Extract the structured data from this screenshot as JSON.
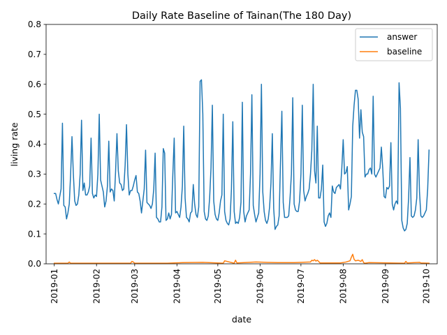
{
  "chart_data": {
    "type": "line",
    "title": "Daily Rate Baseline of Tainan(The 180 Day)",
    "xlabel": "date",
    "ylabel": "living rate",
    "xlim": [
      "2018-12-26",
      "2019-10-09"
    ],
    "ylim": [
      0.0,
      0.8
    ],
    "yticks": [
      0.0,
      0.1,
      0.2,
      0.3,
      0.4,
      0.5,
      0.6,
      0.7,
      0.8
    ],
    "ytick_labels": [
      "0.0",
      "0.1",
      "0.2",
      "0.3",
      "0.4",
      "0.5",
      "0.6",
      "0.7",
      "0.8"
    ],
    "xticks": [
      "2019-01-01",
      "2019-02-01",
      "2019-03-01",
      "2019-04-01",
      "2019-05-01",
      "2019-06-01",
      "2019-07-01",
      "2019-08-01",
      "2019-09-01",
      "2019-10-01"
    ],
    "xtick_labels": [
      "2019-01",
      "2019-02",
      "2019-03",
      "2019-04",
      "2019-05",
      "2019-06",
      "2019-07",
      "2019-08",
      "2019-09",
      "2019-10"
    ],
    "grid": false,
    "legend_position": "top-right",
    "series": [
      {
        "name": "answer",
        "color": "#1f77b4",
        "x": [
          "2019-01-01",
          "2019-01-02",
          "2019-01-03",
          "2019-01-04",
          "2019-01-05",
          "2019-01-06",
          "2019-01-07",
          "2019-01-08",
          "2019-01-09",
          "2019-01-10",
          "2019-01-11",
          "2019-01-12",
          "2019-01-13",
          "2019-01-14",
          "2019-01-15",
          "2019-01-16",
          "2019-01-17",
          "2019-01-18",
          "2019-01-19",
          "2019-01-20",
          "2019-01-21",
          "2019-01-22",
          "2019-01-23",
          "2019-01-24",
          "2019-01-25",
          "2019-01-26",
          "2019-01-27",
          "2019-01-28",
          "2019-01-29",
          "2019-01-30",
          "2019-01-31",
          "2019-02-01",
          "2019-02-02",
          "2019-02-03",
          "2019-02-04",
          "2019-02-05",
          "2019-02-06",
          "2019-02-07",
          "2019-02-08",
          "2019-02-09",
          "2019-02-10",
          "2019-02-11",
          "2019-02-12",
          "2019-02-13",
          "2019-02-14",
          "2019-02-15",
          "2019-02-16",
          "2019-02-17",
          "2019-02-18",
          "2019-02-19",
          "2019-02-20",
          "2019-02-21",
          "2019-02-22",
          "2019-02-23",
          "2019-02-24",
          "2019-02-25",
          "2019-02-26",
          "2019-02-27",
          "2019-02-28",
          "2019-03-01",
          "2019-03-02",
          "2019-03-03",
          "2019-03-04",
          "2019-03-05",
          "2019-03-06",
          "2019-03-07",
          "2019-03-08",
          "2019-03-09",
          "2019-03-10",
          "2019-03-11",
          "2019-03-12",
          "2019-03-13",
          "2019-03-14",
          "2019-03-15",
          "2019-03-16",
          "2019-03-17",
          "2019-03-18",
          "2019-03-19",
          "2019-03-20",
          "2019-03-21",
          "2019-03-22",
          "2019-03-23",
          "2019-03-24",
          "2019-03-25",
          "2019-03-26",
          "2019-03-27",
          "2019-03-28",
          "2019-03-29",
          "2019-03-30",
          "2019-03-31",
          "2019-04-01",
          "2019-04-02",
          "2019-04-03",
          "2019-04-04",
          "2019-04-05",
          "2019-04-06",
          "2019-04-07",
          "2019-04-08",
          "2019-04-09",
          "2019-04-10",
          "2019-04-11",
          "2019-04-12",
          "2019-04-13",
          "2019-04-14",
          "2019-04-15",
          "2019-04-16",
          "2019-04-17",
          "2019-04-18",
          "2019-04-19",
          "2019-04-20",
          "2019-04-21",
          "2019-04-22",
          "2019-04-23",
          "2019-04-24",
          "2019-04-25",
          "2019-04-26",
          "2019-04-27",
          "2019-04-28",
          "2019-04-29",
          "2019-04-30",
          "2019-05-01",
          "2019-05-02",
          "2019-05-03",
          "2019-05-04",
          "2019-05-05",
          "2019-05-06",
          "2019-05-07",
          "2019-05-08",
          "2019-05-09",
          "2019-05-10",
          "2019-05-11",
          "2019-05-12",
          "2019-05-13",
          "2019-05-14",
          "2019-05-15",
          "2019-05-16",
          "2019-05-17",
          "2019-05-18",
          "2019-05-19",
          "2019-05-20",
          "2019-05-21",
          "2019-05-22",
          "2019-05-23",
          "2019-05-24",
          "2019-05-25",
          "2019-05-26",
          "2019-05-27",
          "2019-05-28",
          "2019-05-29",
          "2019-05-30",
          "2019-05-31",
          "2019-06-01",
          "2019-06-02",
          "2019-06-03",
          "2019-06-04",
          "2019-06-05",
          "2019-06-06",
          "2019-06-07",
          "2019-06-08",
          "2019-06-09",
          "2019-06-10",
          "2019-06-11",
          "2019-06-12",
          "2019-06-13",
          "2019-06-14",
          "2019-06-15",
          "2019-06-16",
          "2019-06-17",
          "2019-06-18",
          "2019-06-19",
          "2019-06-20",
          "2019-06-21",
          "2019-06-22",
          "2019-06-23",
          "2019-06-24",
          "2019-06-25",
          "2019-06-26",
          "2019-06-27",
          "2019-06-28",
          "2019-06-29",
          "2019-06-30",
          "2019-07-01",
          "2019-07-02",
          "2019-07-03",
          "2019-07-04",
          "2019-07-05",
          "2019-07-06",
          "2019-07-07",
          "2019-07-08",
          "2019-07-09",
          "2019-07-10",
          "2019-07-11",
          "2019-07-12",
          "2019-07-13",
          "2019-07-14",
          "2019-07-15",
          "2019-07-16",
          "2019-07-17",
          "2019-07-18",
          "2019-07-19",
          "2019-07-20",
          "2019-07-21",
          "2019-07-22",
          "2019-07-23",
          "2019-07-24",
          "2019-07-25",
          "2019-07-26",
          "2019-07-27",
          "2019-07-28",
          "2019-07-29",
          "2019-07-30",
          "2019-07-31",
          "2019-08-01",
          "2019-08-02",
          "2019-08-03",
          "2019-08-04",
          "2019-08-05",
          "2019-08-06",
          "2019-08-07",
          "2019-08-08",
          "2019-08-09",
          "2019-08-10",
          "2019-08-11",
          "2019-08-12",
          "2019-08-13",
          "2019-08-14",
          "2019-08-15",
          "2019-08-16",
          "2019-08-17",
          "2019-08-18",
          "2019-08-19",
          "2019-08-20",
          "2019-08-21",
          "2019-08-22",
          "2019-08-23",
          "2019-08-24",
          "2019-08-25",
          "2019-08-26",
          "2019-08-27",
          "2019-08-28",
          "2019-08-29",
          "2019-08-30",
          "2019-08-31",
          "2019-09-01",
          "2019-09-02",
          "2019-09-03",
          "2019-09-04",
          "2019-09-05",
          "2019-09-06",
          "2019-09-07",
          "2019-09-08",
          "2019-09-09",
          "2019-09-10",
          "2019-09-11",
          "2019-09-12",
          "2019-09-13",
          "2019-09-14",
          "2019-09-15",
          "2019-09-16",
          "2019-09-17",
          "2019-09-18",
          "2019-09-19",
          "2019-09-20",
          "2019-09-21",
          "2019-09-22",
          "2019-09-23",
          "2019-09-24",
          "2019-09-25",
          "2019-09-26",
          "2019-09-27",
          "2019-09-28",
          "2019-09-29",
          "2019-09-30",
          "2019-10-01",
          "2019-10-02",
          "2019-10-03"
        ],
        "y": [
          0.235,
          0.235,
          0.215,
          0.2,
          0.225,
          0.25,
          0.47,
          0.195,
          0.19,
          0.15,
          0.17,
          0.2,
          0.3,
          0.425,
          0.3,
          0.21,
          0.195,
          0.2,
          0.23,
          0.3,
          0.48,
          0.245,
          0.27,
          0.23,
          0.23,
          0.24,
          0.26,
          0.42,
          0.235,
          0.22,
          0.23,
          0.225,
          0.3,
          0.5,
          0.28,
          0.26,
          0.24,
          0.19,
          0.21,
          0.26,
          0.41,
          0.24,
          0.25,
          0.245,
          0.21,
          0.31,
          0.435,
          0.31,
          0.27,
          0.265,
          0.245,
          0.25,
          0.33,
          0.465,
          0.3,
          0.23,
          0.245,
          0.245,
          0.26,
          0.28,
          0.295,
          0.24,
          0.235,
          0.21,
          0.17,
          0.21,
          0.25,
          0.38,
          0.205,
          0.2,
          0.195,
          0.185,
          0.2,
          0.25,
          0.37,
          0.155,
          0.15,
          0.14,
          0.14,
          0.19,
          0.385,
          0.37,
          0.145,
          0.15,
          0.17,
          0.15,
          0.165,
          0.3,
          0.42,
          0.17,
          0.175,
          0.165,
          0.155,
          0.19,
          0.26,
          0.46,
          0.22,
          0.155,
          0.15,
          0.14,
          0.17,
          0.175,
          0.265,
          0.2,
          0.165,
          0.155,
          0.19,
          0.61,
          0.615,
          0.5,
          0.175,
          0.15,
          0.145,
          0.16,
          0.22,
          0.32,
          0.53,
          0.21,
          0.165,
          0.15,
          0.145,
          0.17,
          0.21,
          0.23,
          0.5,
          0.175,
          0.145,
          0.135,
          0.13,
          0.15,
          0.25,
          0.475,
          0.175,
          0.135,
          0.14,
          0.135,
          0.155,
          0.205,
          0.54,
          0.175,
          0.14,
          0.16,
          0.17,
          0.18,
          0.3,
          0.565,
          0.195,
          0.165,
          0.14,
          0.155,
          0.17,
          0.3,
          0.6,
          0.24,
          0.175,
          0.145,
          0.135,
          0.15,
          0.19,
          0.27,
          0.435,
          0.185,
          0.115,
          0.125,
          0.13,
          0.16,
          0.34,
          0.51,
          0.205,
          0.155,
          0.155,
          0.155,
          0.16,
          0.22,
          0.3,
          0.555,
          0.2,
          0.18,
          0.175,
          0.175,
          0.21,
          0.3,
          0.53,
          0.245,
          0.21,
          0.225,
          0.235,
          0.25,
          0.3,
          0.38,
          0.6,
          0.31,
          0.27,
          0.46,
          0.22,
          0.22,
          0.25,
          0.33,
          0.14,
          0.125,
          0.135,
          0.16,
          0.17,
          0.155,
          0.26,
          0.24,
          0.235,
          0.255,
          0.26,
          0.265,
          0.25,
          0.32,
          0.415,
          0.3,
          0.305,
          0.325,
          0.18,
          0.2,
          0.225,
          0.46,
          0.53,
          0.58,
          0.58,
          0.55,
          0.42,
          0.515,
          0.44,
          0.425,
          0.29,
          0.3,
          0.3,
          0.315,
          0.32,
          0.3,
          0.56,
          0.3,
          0.29,
          0.3,
          0.31,
          0.32,
          0.39,
          0.32,
          0.225,
          0.22,
          0.255,
          0.25,
          0.26,
          0.405,
          0.2,
          0.18,
          0.2,
          0.21,
          0.2,
          0.605,
          0.52,
          0.145,
          0.12,
          0.11,
          0.115,
          0.135,
          0.22,
          0.355,
          0.16,
          0.155,
          0.16,
          0.18,
          0.22,
          0.415,
          0.24,
          0.16,
          0.155,
          0.16,
          0.17,
          0.18,
          0.25,
          0.38
        ]
      },
      {
        "name": "baseline",
        "color": "#ff7f0e",
        "x": [
          "2019-01-01",
          "2019-01-11",
          "2019-01-12",
          "2019-01-13",
          "2019-02-26",
          "2019-02-27",
          "2019-02-28",
          "2019-03-01",
          "2019-03-25",
          "2019-04-05",
          "2019-04-20",
          "2019-05-05",
          "2019-05-06",
          "2019-05-13",
          "2019-05-14",
          "2019-05-15",
          "2019-05-29",
          "2019-06-14",
          "2019-06-26",
          "2019-07-08",
          "2019-07-09",
          "2019-07-10",
          "2019-07-11",
          "2019-07-12",
          "2019-07-13",
          "2019-07-14",
          "2019-07-15",
          "2019-07-30",
          "2019-08-03",
          "2019-08-06",
          "2019-08-07",
          "2019-08-08",
          "2019-08-09",
          "2019-08-10",
          "2019-08-12",
          "2019-08-14",
          "2019-08-15",
          "2019-08-16",
          "2019-08-17",
          "2019-08-20",
          "2019-09-15",
          "2019-09-16",
          "2019-09-17",
          "2019-09-26",
          "2019-09-27",
          "2019-10-03"
        ],
        "y": [
          0.002,
          0.002,
          0.006,
          0.002,
          0.002,
          0.008,
          0.006,
          0.002,
          0.002,
          0.004,
          0.005,
          0.002,
          0.01,
          0.002,
          0.012,
          0.003,
          0.006,
          0.004,
          0.004,
          0.006,
          0.012,
          0.01,
          0.014,
          0.009,
          0.012,
          0.008,
          0.003,
          0.003,
          0.006,
          0.01,
          0.022,
          0.032,
          0.015,
          0.01,
          0.012,
          0.008,
          0.014,
          0.004,
          0.002,
          0.004,
          0.002,
          0.008,
          0.003,
          0.005,
          0.003,
          0.002
        ]
      }
    ]
  }
}
